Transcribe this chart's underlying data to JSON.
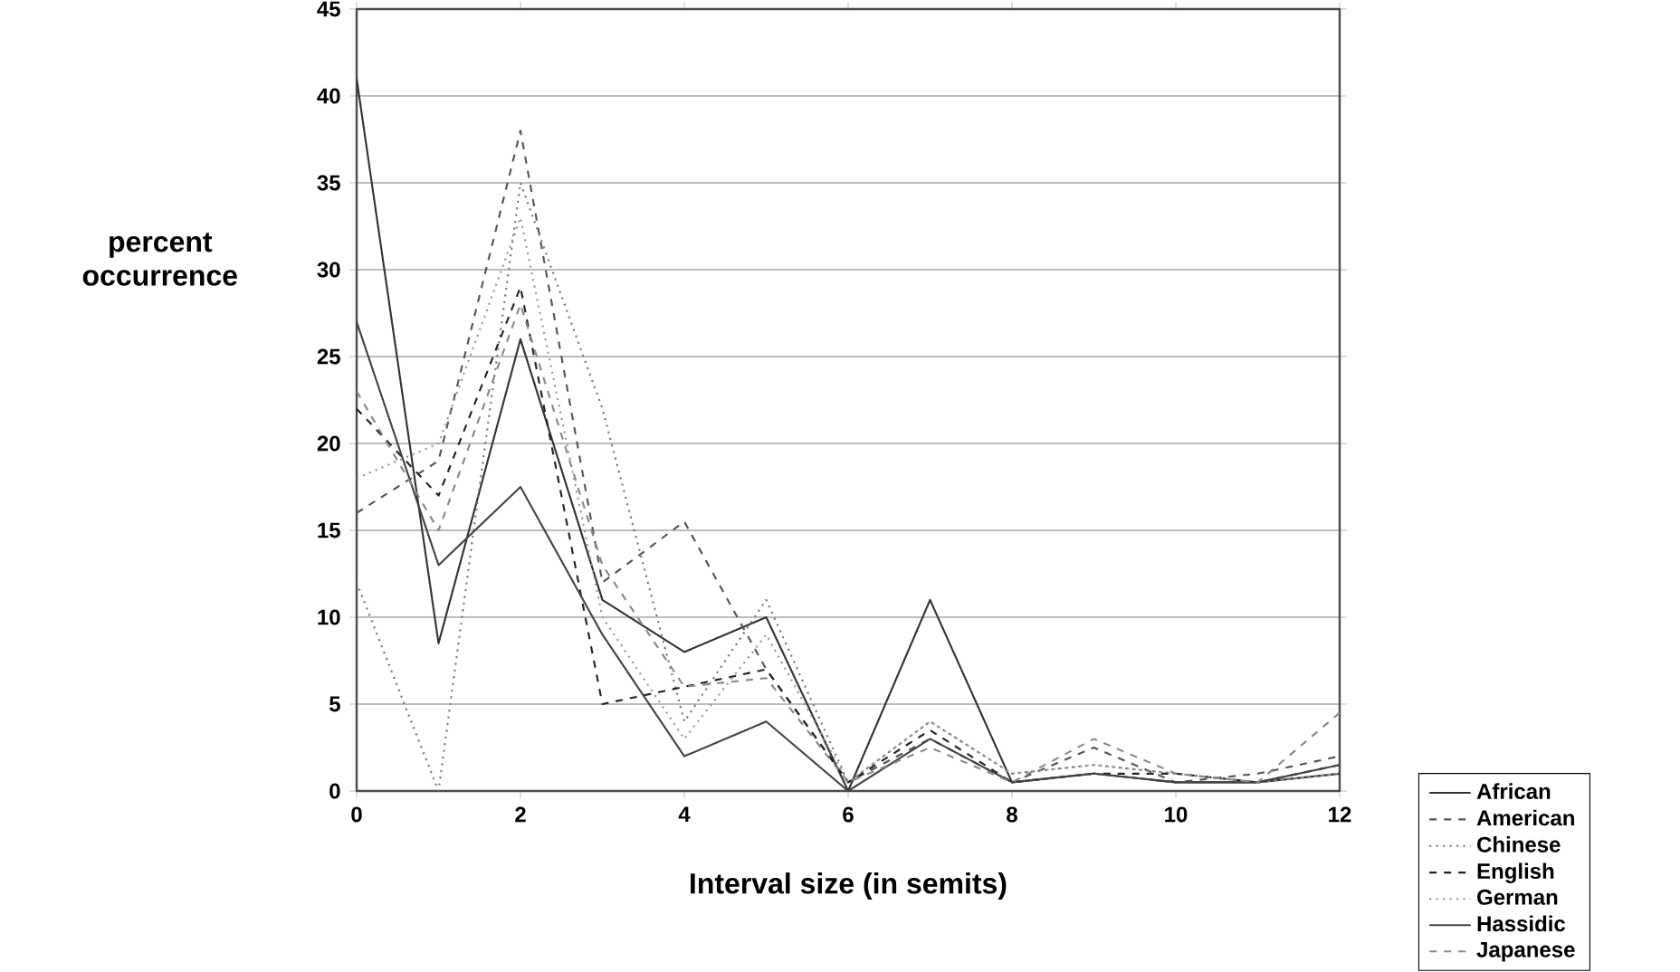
{
  "chart_data": {
    "type": "line",
    "xlabel": "Interval size (in semits)",
    "ylabel": "percent occurrence",
    "x": [
      0,
      1,
      2,
      3,
      4,
      5,
      6,
      7,
      8,
      9,
      10,
      11,
      12
    ],
    "series": [
      {
        "name": "African",
        "color": "#333333",
        "line_style": "solid",
        "values": [
          41,
          8.5,
          26,
          11,
          8,
          10,
          0,
          11,
          0.5,
          1,
          0.5,
          0.5,
          1
        ]
      },
      {
        "name": "American",
        "color": "#555555",
        "line_style": "dashed",
        "values": [
          16,
          19,
          38,
          12,
          15.5,
          7,
          0.5,
          3,
          0.5,
          2.5,
          0.5,
          1,
          2
        ]
      },
      {
        "name": "Chinese",
        "color": "#777777",
        "line_style": "dotted",
        "values": [
          12,
          0,
          35,
          22,
          4,
          11,
          0.5,
          4,
          1,
          1.5,
          1,
          0.5,
          1
        ]
      },
      {
        "name": "English",
        "color": "#222222",
        "line_style": "dashed",
        "values": [
          22,
          17,
          29,
          5,
          6,
          7,
          0.5,
          3.5,
          0.5,
          1,
          1,
          0.5,
          1.5
        ]
      },
      {
        "name": "German",
        "color": "#999999",
        "line_style": "dotted",
        "values": [
          18,
          20,
          33,
          10,
          3,
          9,
          0.5,
          4,
          1,
          1.5,
          1,
          0.5,
          1
        ]
      },
      {
        "name": "Hassidic",
        "color": "#444444",
        "line_style": "solid",
        "values": [
          27,
          13,
          17.5,
          9,
          2,
          4,
          0,
          3,
          0.5,
          1,
          0.5,
          0.5,
          1.5
        ]
      },
      {
        "name": "Japanese",
        "color": "#888888",
        "line_style": "dashed",
        "values": [
          23,
          15,
          28,
          13,
          6,
          6.5,
          0.5,
          2.5,
          0.5,
          3,
          1,
          0.5,
          4.5
        ]
      }
    ],
    "xlim": [
      0,
      12
    ],
    "xticks": [
      0,
      2,
      4,
      6,
      8,
      10,
      12
    ],
    "ylim": [
      0,
      45
    ],
    "yticks": [
      0,
      5,
      10,
      15,
      20,
      25,
      30,
      35,
      40,
      45
    ],
    "grid": "y",
    "legend": "bottom right",
    "marker": "none"
  }
}
